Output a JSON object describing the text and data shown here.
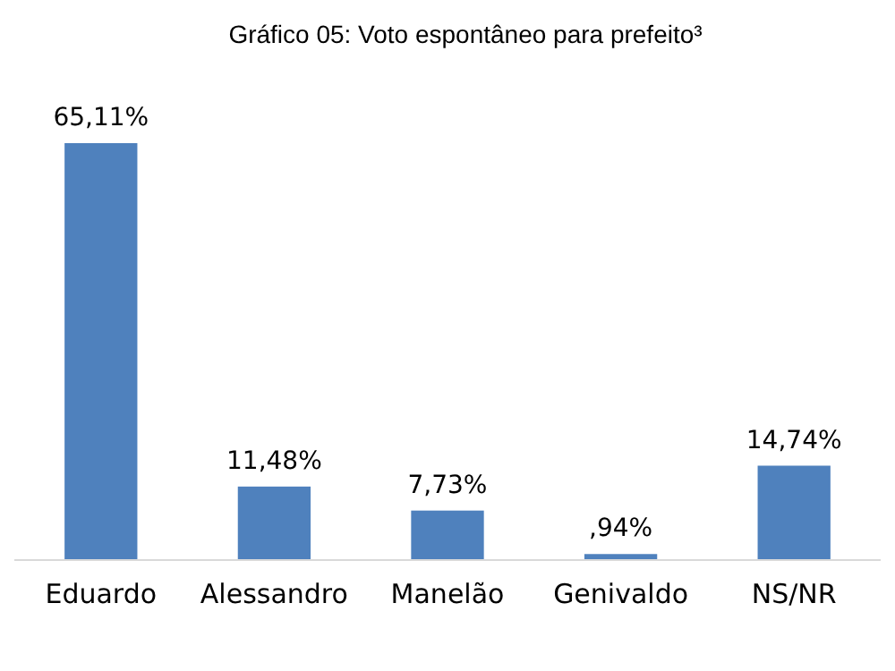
{
  "chart_data": {
    "type": "bar",
    "title": "Gráfico 05: Voto espontâneo para prefeito³",
    "categories": [
      "Eduardo",
      "Alessandro",
      "Manelão",
      "Genivaldo",
      "NS/NR"
    ],
    "values": [
      65.11,
      11.48,
      7.73,
      0.94,
      14.74
    ],
    "value_labels": [
      "65,11%",
      "11,48%",
      "7,73%",
      ",94%",
      "14,74%"
    ],
    "color": "#4f81bd"
  }
}
